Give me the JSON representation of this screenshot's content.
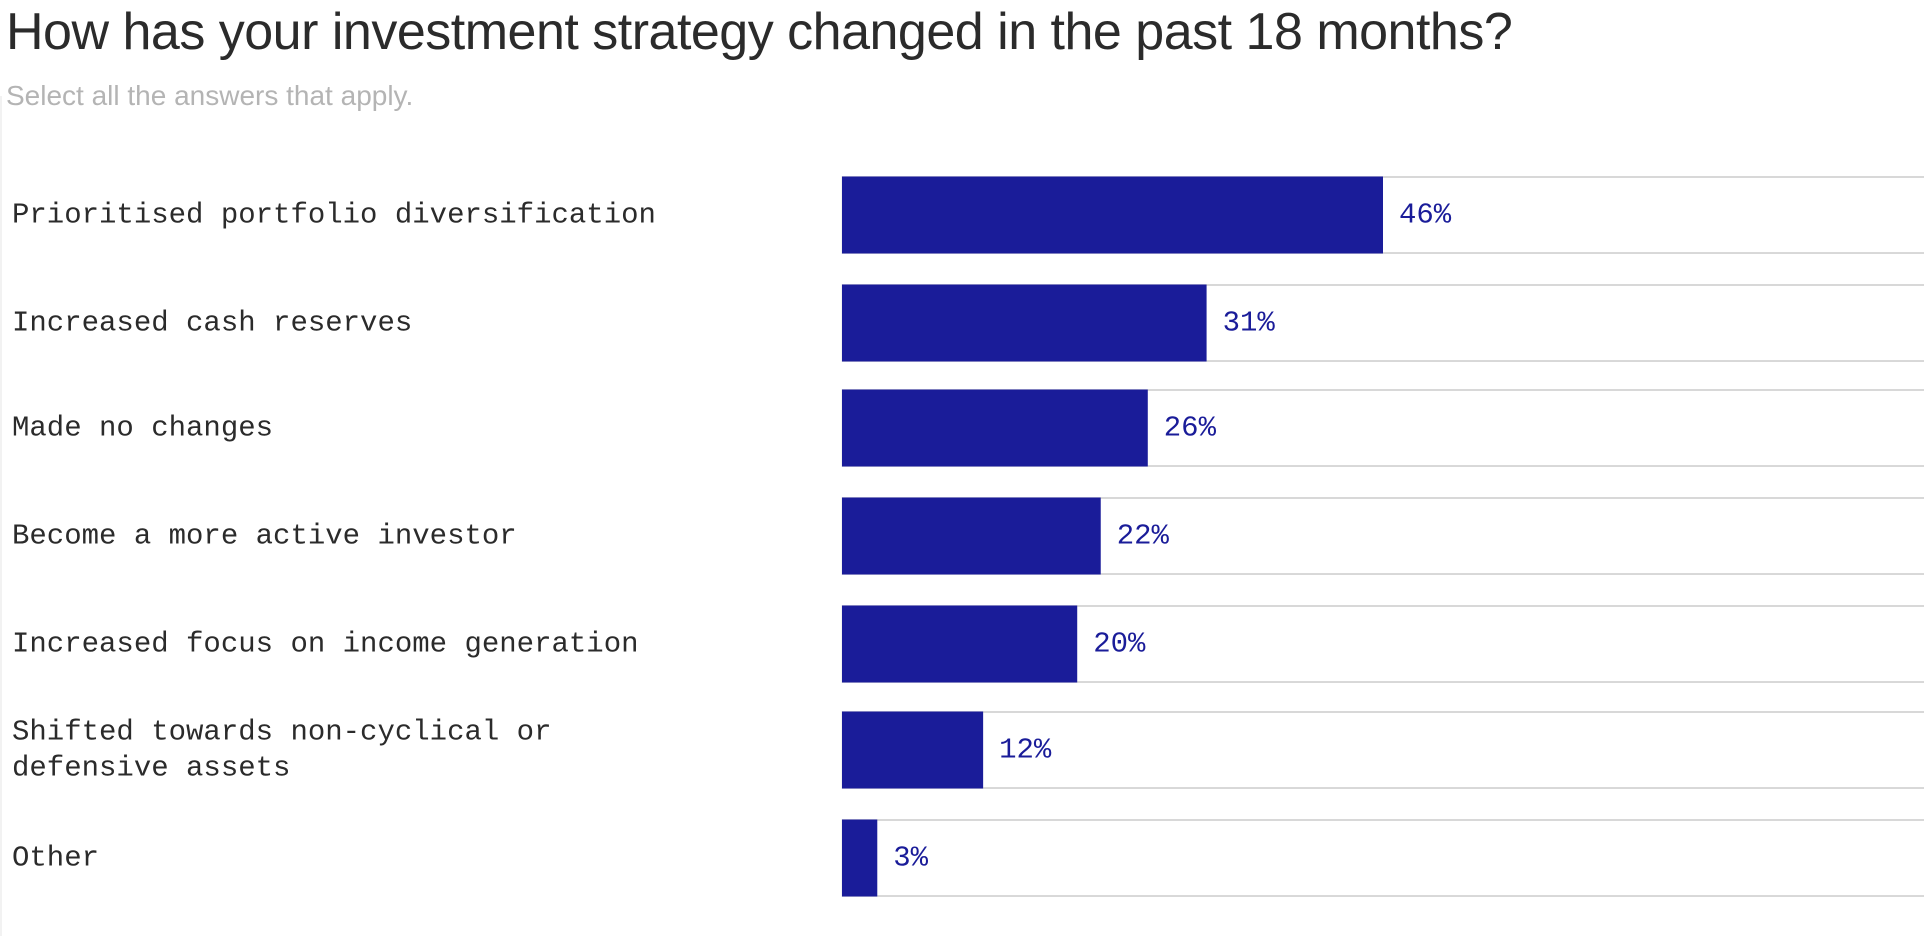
{
  "chart_data": {
    "type": "bar",
    "orientation": "horizontal",
    "title": "How has your investment strategy changed in the past 18 months?",
    "subtitle": "Select all the answers that apply.",
    "categories": [
      [
        "Prioritised portfolio diversification"
      ],
      [
        "Increased cash reserves"
      ],
      [
        "Made no changes"
      ],
      [
        "Become a more active investor"
      ],
      [
        "Increased focus on income generation"
      ],
      [
        "Shifted towards non-cyclical or",
        "defensive assets"
      ],
      [
        "Other"
      ]
    ],
    "values": [
      46,
      31,
      26,
      22,
      20,
      12,
      3
    ],
    "value_labels": [
      "46%",
      "31%",
      "26%",
      "22%",
      "20%",
      "12%",
      "3%"
    ],
    "unit": "%",
    "xlim": [
      0,
      92
    ],
    "xlabel": "",
    "ylabel": "",
    "grid": false,
    "legend": "none"
  },
  "colors": {
    "bar": "#1a1c99",
    "track_border": "#cccccc",
    "value_text": "#1a1c99",
    "label_text": "#2b2b2b"
  }
}
